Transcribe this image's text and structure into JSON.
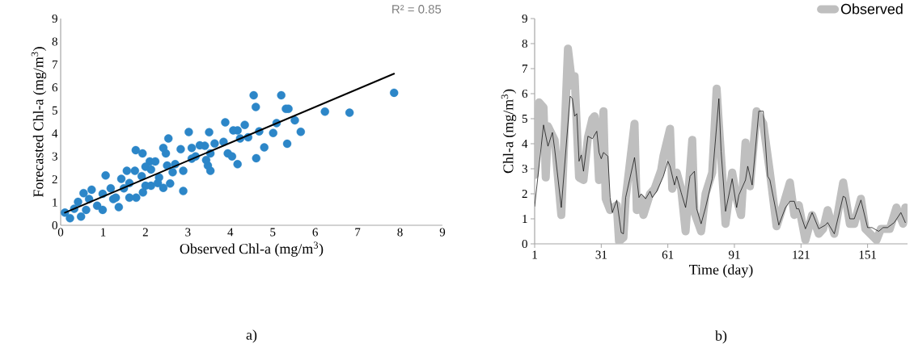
{
  "chart_data": [
    {
      "type": "scatter",
      "xlabel": "Observed Chl-a (mg/m$^{3}$)",
      "ylabel": "Forecasted Chl-a (mg/m$^{3}$)",
      "marker": "circle",
      "xlim": [
        0,
        9
      ],
      "ylim": [
        0,
        9
      ],
      "xticks": [
        0,
        1,
        2,
        3,
        4,
        5,
        6,
        7,
        8,
        9
      ],
      "yticks": [
        0,
        1,
        2,
        3,
        4,
        5,
        6,
        7,
        8,
        9
      ],
      "annotations": [
        "R² = 0.85",
        "a)"
      ],
      "series": [
        {
          "type": "scatter",
          "color": "#2c86c8",
          "x": [
            4.55,
            5.2,
            4.6,
            5.31,
            5.37,
            7.86,
            6.23,
            6.81,
            5.52,
            5.66,
            5.34,
            5.09,
            5.01,
            4.8,
            4.61,
            4.68,
            4.34,
            4.17,
            4.07,
            4.23,
            4.42,
            3.88,
            4.17,
            3.94,
            4.04,
            3.84,
            3.5,
            3.02,
            3.63,
            3.4,
            3.28,
            3.09,
            2.83,
            2.54,
            2.42,
            2.48,
            3.53,
            3.47,
            3.43,
            3.09,
            2.89,
            2.64,
            2.89,
            2.58,
            2.42,
            1.77,
            1.93,
            2.1,
            2.23,
            2.51,
            2.0,
            2.13,
            2.32,
            2.0,
            1.75,
            1.56,
            1.78,
            1.06,
            1.43,
            1.62,
            1.37,
            1.18,
            0.99,
            0.73,
            0.54,
            0.41,
            0.67,
            0.86,
            0.48,
            0.1,
            0.22,
            0.32,
            1.24,
            1.49,
            1.91,
            2.7,
            2.13,
            0.99,
            1.62,
            1.3,
            0.6,
            1.94,
            2.29,
            3.53,
            3.18
          ],
          "values": [
            5.66,
            5.66,
            5.15,
            5.07,
            5.07,
            5.77,
            4.95,
            4.9,
            4.57,
            4.07,
            3.55,
            4.45,
            4.02,
            3.39,
            2.92,
            4.09,
            4.37,
            4.13,
            4.13,
            3.78,
            3.83,
            4.48,
            2.66,
            3.13,
            3.0,
            3.63,
            4.05,
            4.06,
            3.56,
            3.46,
            3.48,
            3.37,
            3.31,
            3.78,
            3.37,
            3.13,
            2.37,
            2.6,
            2.84,
            2.9,
            2.37,
            2.31,
            1.49,
            1.82,
            1.63,
            3.27,
            3.13,
            2.78,
            2.78,
            2.6,
            2.55,
            2.43,
            2.08,
            1.72,
            2.37,
            2.37,
            1.2,
            2.17,
            2.02,
            1.84,
            0.79,
            1.61,
            1.37,
            1.55,
            1.4,
            1.02,
            1.14,
            0.85,
            0.38,
            0.55,
            0.31,
            0.72,
            1.14,
            1.61,
            2.14,
            2.66,
            1.72,
            0.67,
            1.2,
            1.2,
            0.67,
            1.43,
            1.84,
            3.13,
            3.0
          ]
        },
        {
          "type": "line",
          "marker": "none",
          "color": "#000000",
          "x": [
            0.1,
            7.86
          ],
          "values": [
            0.55,
            6.6
          ]
        }
      ]
    },
    {
      "type": "line",
      "xlabel": "Time (day)",
      "ylabel": "Chl-a (mg/m$^{3}$)",
      "legend": "top right",
      "xlim": [
        1,
        169
      ],
      "ylim": [
        0,
        9
      ],
      "xticks": [
        1,
        31,
        61,
        91,
        121,
        151
      ],
      "yticks": [
        0,
        1,
        2,
        3,
        4,
        5,
        6,
        7,
        8,
        9
      ],
      "annotations": [
        "b)"
      ],
      "series": [
        {
          "name": "Observed",
          "color": "#bfbfbf",
          "x": [
            1,
            3,
            5,
            6,
            7,
            10,
            13,
            16,
            18,
            19,
            21,
            23,
            25,
            27,
            28,
            29,
            30,
            32,
            33,
            35,
            38,
            39,
            41,
            42,
            46,
            47,
            49,
            50,
            53,
            55,
            58,
            59,
            62,
            63,
            65,
            67,
            69,
            72,
            73,
            76,
            78,
            81,
            83,
            84,
            87,
            90,
            92,
            94,
            96,
            98,
            101,
            104,
            107,
            110,
            113,
            116,
            118,
            120,
            123,
            126,
            129,
            131,
            133,
            136,
            140,
            143,
            145,
            148,
            150,
            155,
            157,
            161,
            164,
            167,
            168
          ],
          "values": [
            2.75,
            5.65,
            5.45,
            2.65,
            4.7,
            4.15,
            1.15,
            7.8,
            6.3,
            6.7,
            2.65,
            2.55,
            4.25,
            5.0,
            5.1,
            4.3,
            2.55,
            5.3,
            1.8,
            1.35,
            1.55,
            0.1,
            0.25,
            1.8,
            4.8,
            1.35,
            1.8,
            1.15,
            2.0,
            2.2,
            2.95,
            3.5,
            4.6,
            2.2,
            2.85,
            2.2,
            0.5,
            4.15,
            1.25,
            0.5,
            2.0,
            2.85,
            6.2,
            4.8,
            0.8,
            2.85,
            1.8,
            1.15,
            4.05,
            2.3,
            5.3,
            4.8,
            2.85,
            0.7,
            1.55,
            2.45,
            1.15,
            1.55,
            0.15,
            1.15,
            0.4,
            0.6,
            1.35,
            0.4,
            2.45,
            0.8,
            0.8,
            1.8,
            0.6,
            0.15,
            0.6,
            0.6,
            1.45,
            0.8,
            1.45
          ]
        },
        {
          "color": "#000000",
          "x": [
            1,
            5,
            7,
            9,
            10,
            13,
            17,
            18,
            19,
            20,
            21,
            22,
            23,
            25,
            27,
            29,
            30,
            31,
            32,
            34,
            35,
            36,
            38,
            40,
            41,
            42,
            46,
            48,
            49,
            51,
            53,
            54,
            56,
            59,
            61,
            62,
            64,
            65,
            67,
            69,
            71,
            73,
            74,
            76,
            78,
            81,
            84,
            85,
            87,
            90,
            92,
            93,
            96,
            97,
            99,
            102,
            104,
            106,
            107,
            111,
            114,
            116,
            118,
            119,
            120,
            123,
            126,
            129,
            132,
            133,
            136,
            140,
            141,
            143,
            145,
            148,
            151,
            153,
            156,
            158,
            160,
            163,
            166,
            168
          ],
          "values": [
            1.5,
            4.75,
            3.9,
            4.45,
            3.8,
            1.45,
            5.9,
            5.8,
            5.1,
            5.2,
            3.3,
            3.55,
            2.9,
            4.3,
            4.2,
            4.5,
            3.65,
            3.4,
            3.65,
            3.5,
            1.85,
            1.25,
            1.75,
            0.45,
            0.4,
            1.85,
            3.45,
            1.85,
            2.0,
            1.8,
            2.1,
            1.85,
            2.1,
            2.7,
            3.3,
            3.1,
            2.35,
            2.7,
            2.05,
            1.45,
            2.7,
            2.9,
            1.4,
            0.8,
            1.45,
            2.6,
            5.8,
            3.7,
            1.3,
            2.6,
            1.45,
            1.95,
            2.55,
            3.1,
            2.35,
            5.3,
            5.3,
            2.7,
            2.55,
            0.75,
            1.45,
            1.7,
            1.7,
            1.4,
            1.4,
            0.6,
            1.25,
            0.6,
            0.75,
            0.85,
            0.4,
            1.9,
            1.85,
            1.0,
            1.0,
            1.75,
            0.65,
            0.65,
            0.5,
            0.65,
            0.65,
            0.85,
            1.25,
            0.85
          ]
        }
      ]
    }
  ]
}
